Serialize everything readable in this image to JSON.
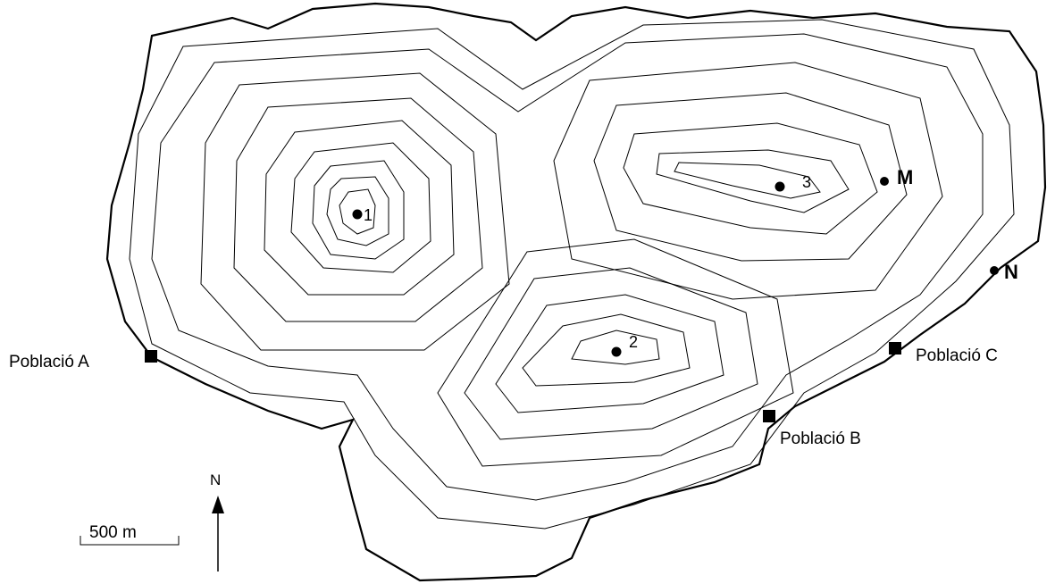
{
  "peaks": [
    {
      "id": "peak-1",
      "label": "1"
    },
    {
      "id": "peak-2",
      "label": "2"
    },
    {
      "id": "peak-3",
      "label": "3"
    }
  ],
  "points": [
    {
      "id": "point-m",
      "label": "M"
    },
    {
      "id": "point-n",
      "label": "N"
    }
  ],
  "towns": [
    {
      "id": "town-a",
      "label": "Població A"
    },
    {
      "id": "town-b",
      "label": "Població B"
    },
    {
      "id": "town-c",
      "label": "Població C"
    }
  ],
  "scale_bar": {
    "label": "500 m"
  },
  "north_arrow": {
    "label": "N"
  },
  "colors": {
    "ink": "#000000",
    "background": "#ffffff"
  }
}
